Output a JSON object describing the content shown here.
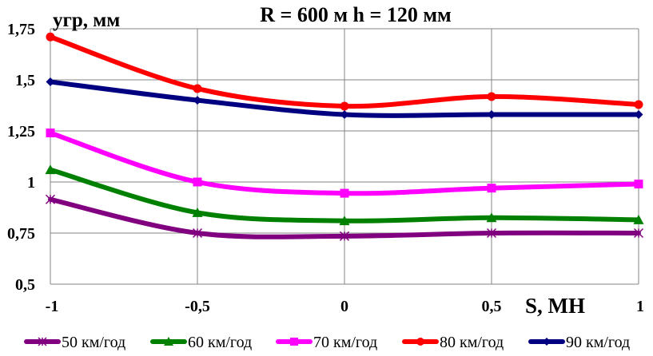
{
  "chart_data": {
    "type": "line",
    "title": "R = 600 м  h = 120 мм",
    "xlabel": "S, МН",
    "ylabel": "yгр, мм",
    "x": [
      -1,
      -0.5,
      0,
      0.5,
      1
    ],
    "x_tick_labels": [
      "-1",
      "-0,5",
      "0",
      "0,5",
      "1"
    ],
    "y_ticks": [
      0.5,
      0.75,
      1,
      1.25,
      1.5,
      1.75
    ],
    "y_tick_labels": [
      "0,5",
      "0,75",
      "1",
      "1,25",
      "1,5",
      "1,75"
    ],
    "xlim": [
      -1,
      1
    ],
    "ylim": [
      0.5,
      1.75
    ],
    "grid": true,
    "smooth": true,
    "legend_position": "bottom",
    "series": [
      {
        "name": "50 км/год",
        "color": "#800080",
        "marker": "star",
        "values": [
          0.915,
          0.75,
          0.735,
          0.75,
          0.75
        ]
      },
      {
        "name": "60 км/год",
        "color": "#008000",
        "marker": "triangle",
        "values": [
          1.06,
          0.85,
          0.81,
          0.825,
          0.815
        ]
      },
      {
        "name": "70 км/год",
        "color": "#ff00ff",
        "marker": "square",
        "values": [
          1.24,
          1.0,
          0.945,
          0.97,
          0.99
        ]
      },
      {
        "name": "80 км/год",
        "color": "#ff0000",
        "marker": "circle",
        "values": [
          1.71,
          1.457,
          1.371,
          1.418,
          1.379
        ]
      },
      {
        "name": "90 км/год",
        "color": "#000080",
        "marker": "diamond",
        "values": [
          1.49,
          1.4,
          1.33,
          1.33,
          1.33
        ]
      }
    ]
  }
}
